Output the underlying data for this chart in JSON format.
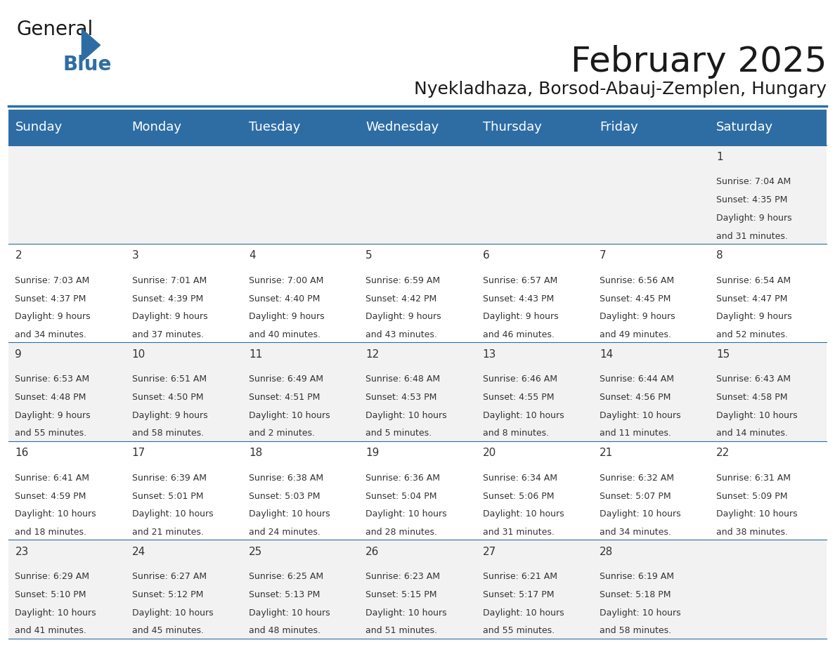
{
  "title": "February 2025",
  "subtitle": "Nyekladhaza, Borsod-Abauj-Zemplen, Hungary",
  "header_color": "#2E6DA4",
  "header_text_color": "#FFFFFF",
  "background_color": "#FFFFFF",
  "alt_row_color": "#F2F2F2",
  "border_color": "#2E6DA4",
  "day_names": [
    "Sunday",
    "Monday",
    "Tuesday",
    "Wednesday",
    "Thursday",
    "Friday",
    "Saturday"
  ],
  "title_fontsize": 36,
  "subtitle_fontsize": 18,
  "day_header_fontsize": 13,
  "cell_fontsize": 9,
  "day_num_fontsize": 11,
  "logo_text1": "General",
  "logo_text2": "Blue",
  "logo_color1": "#1a1a1a",
  "logo_color2": "#2E6DA4",
  "weeks": [
    [
      {
        "day": null,
        "info": ""
      },
      {
        "day": null,
        "info": ""
      },
      {
        "day": null,
        "info": ""
      },
      {
        "day": null,
        "info": ""
      },
      {
        "day": null,
        "info": ""
      },
      {
        "day": null,
        "info": ""
      },
      {
        "day": 1,
        "info": "Sunrise: 7:04 AM\nSunset: 4:35 PM\nDaylight: 9 hours\nand 31 minutes."
      }
    ],
    [
      {
        "day": 2,
        "info": "Sunrise: 7:03 AM\nSunset: 4:37 PM\nDaylight: 9 hours\nand 34 minutes."
      },
      {
        "day": 3,
        "info": "Sunrise: 7:01 AM\nSunset: 4:39 PM\nDaylight: 9 hours\nand 37 minutes."
      },
      {
        "day": 4,
        "info": "Sunrise: 7:00 AM\nSunset: 4:40 PM\nDaylight: 9 hours\nand 40 minutes."
      },
      {
        "day": 5,
        "info": "Sunrise: 6:59 AM\nSunset: 4:42 PM\nDaylight: 9 hours\nand 43 minutes."
      },
      {
        "day": 6,
        "info": "Sunrise: 6:57 AM\nSunset: 4:43 PM\nDaylight: 9 hours\nand 46 minutes."
      },
      {
        "day": 7,
        "info": "Sunrise: 6:56 AM\nSunset: 4:45 PM\nDaylight: 9 hours\nand 49 minutes."
      },
      {
        "day": 8,
        "info": "Sunrise: 6:54 AM\nSunset: 4:47 PM\nDaylight: 9 hours\nand 52 minutes."
      }
    ],
    [
      {
        "day": 9,
        "info": "Sunrise: 6:53 AM\nSunset: 4:48 PM\nDaylight: 9 hours\nand 55 minutes."
      },
      {
        "day": 10,
        "info": "Sunrise: 6:51 AM\nSunset: 4:50 PM\nDaylight: 9 hours\nand 58 minutes."
      },
      {
        "day": 11,
        "info": "Sunrise: 6:49 AM\nSunset: 4:51 PM\nDaylight: 10 hours\nand 2 minutes."
      },
      {
        "day": 12,
        "info": "Sunrise: 6:48 AM\nSunset: 4:53 PM\nDaylight: 10 hours\nand 5 minutes."
      },
      {
        "day": 13,
        "info": "Sunrise: 6:46 AM\nSunset: 4:55 PM\nDaylight: 10 hours\nand 8 minutes."
      },
      {
        "day": 14,
        "info": "Sunrise: 6:44 AM\nSunset: 4:56 PM\nDaylight: 10 hours\nand 11 minutes."
      },
      {
        "day": 15,
        "info": "Sunrise: 6:43 AM\nSunset: 4:58 PM\nDaylight: 10 hours\nand 14 minutes."
      }
    ],
    [
      {
        "day": 16,
        "info": "Sunrise: 6:41 AM\nSunset: 4:59 PM\nDaylight: 10 hours\nand 18 minutes."
      },
      {
        "day": 17,
        "info": "Sunrise: 6:39 AM\nSunset: 5:01 PM\nDaylight: 10 hours\nand 21 minutes."
      },
      {
        "day": 18,
        "info": "Sunrise: 6:38 AM\nSunset: 5:03 PM\nDaylight: 10 hours\nand 24 minutes."
      },
      {
        "day": 19,
        "info": "Sunrise: 6:36 AM\nSunset: 5:04 PM\nDaylight: 10 hours\nand 28 minutes."
      },
      {
        "day": 20,
        "info": "Sunrise: 6:34 AM\nSunset: 5:06 PM\nDaylight: 10 hours\nand 31 minutes."
      },
      {
        "day": 21,
        "info": "Sunrise: 6:32 AM\nSunset: 5:07 PM\nDaylight: 10 hours\nand 34 minutes."
      },
      {
        "day": 22,
        "info": "Sunrise: 6:31 AM\nSunset: 5:09 PM\nDaylight: 10 hours\nand 38 minutes."
      }
    ],
    [
      {
        "day": 23,
        "info": "Sunrise: 6:29 AM\nSunset: 5:10 PM\nDaylight: 10 hours\nand 41 minutes."
      },
      {
        "day": 24,
        "info": "Sunrise: 6:27 AM\nSunset: 5:12 PM\nDaylight: 10 hours\nand 45 minutes."
      },
      {
        "day": 25,
        "info": "Sunrise: 6:25 AM\nSunset: 5:13 PM\nDaylight: 10 hours\nand 48 minutes."
      },
      {
        "day": 26,
        "info": "Sunrise: 6:23 AM\nSunset: 5:15 PM\nDaylight: 10 hours\nand 51 minutes."
      },
      {
        "day": 27,
        "info": "Sunrise: 6:21 AM\nSunset: 5:17 PM\nDaylight: 10 hours\nand 55 minutes."
      },
      {
        "day": 28,
        "info": "Sunrise: 6:19 AM\nSunset: 5:18 PM\nDaylight: 10 hours\nand 58 minutes."
      },
      {
        "day": null,
        "info": ""
      }
    ]
  ]
}
